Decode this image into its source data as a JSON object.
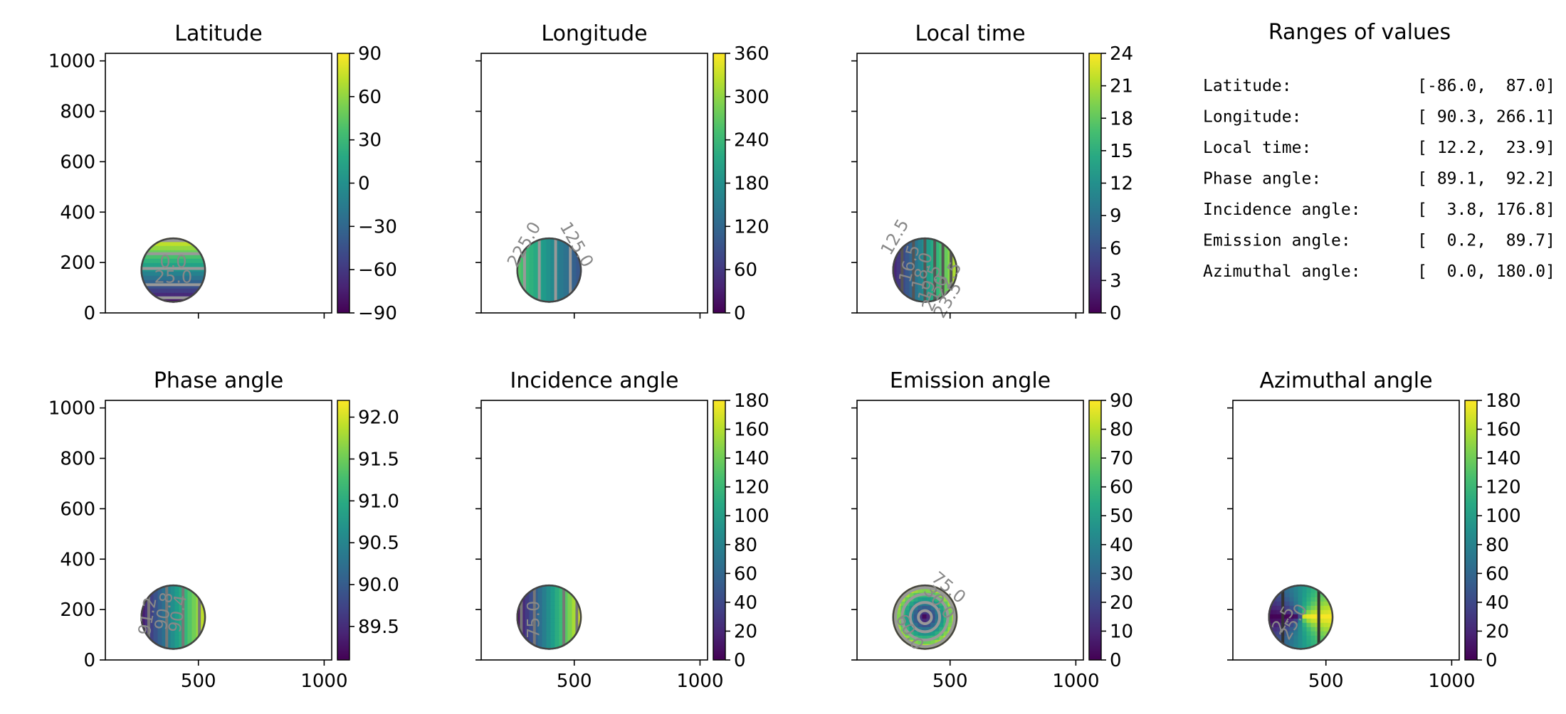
{
  "chart_data": [
    {
      "type": "heatmap",
      "title": "Latitude",
      "xlim": [
        130,
        1030
      ],
      "ylim": [
        0,
        1030
      ],
      "x_ticks": [
        500,
        1000
      ],
      "y_ticks": [
        0,
        200,
        400,
        600,
        800,
        1000
      ],
      "show_x_labels": false,
      "show_y_labels": true,
      "disk": {
        "cx": 400,
        "cy": 170,
        "r": 130
      },
      "field": "latitude",
      "colorbar": {
        "min": -90,
        "max": 90,
        "ticks": [
          "90",
          "60",
          "30",
          "0",
          "−30",
          "−60",
          "−90"
        ],
        "tick_values": [
          90,
          60,
          30,
          0,
          -30,
          -60,
          -90
        ]
      },
      "contour_labels": [
        {
          "text": "0.0",
          "x": 400,
          "y": 180,
          "rotation": 0
        },
        {
          "text": "25.0",
          "x": 400,
          "y": 120,
          "rotation": 0
        }
      ]
    },
    {
      "type": "heatmap",
      "title": "Longitude",
      "xlim": [
        130,
        1030
      ],
      "ylim": [
        0,
        1030
      ],
      "x_ticks": [
        500,
        1000
      ],
      "y_ticks": [
        0,
        200,
        400,
        600,
        800,
        1000
      ],
      "show_x_labels": false,
      "show_y_labels": false,
      "disk": {
        "cx": 400,
        "cy": 170,
        "r": 130
      },
      "field": "longitude",
      "colorbar": {
        "min": 0,
        "max": 360,
        "ticks": [
          "360",
          "300",
          "240",
          "180",
          "120",
          "60",
          "0"
        ],
        "tick_values": [
          360,
          300,
          240,
          180,
          120,
          60,
          0
        ]
      },
      "contour_labels": [
        {
          "text": "225.0",
          "x": 320,
          "y": 260,
          "rotation": -60
        },
        {
          "text": "125.0",
          "x": 490,
          "y": 260,
          "rotation": 60
        }
      ]
    },
    {
      "type": "heatmap",
      "title": "Local time",
      "xlim": [
        130,
        1030
      ],
      "ylim": [
        0,
        1030
      ],
      "x_ticks": [
        500,
        1000
      ],
      "y_ticks": [
        0,
        200,
        400,
        600,
        800,
        1000
      ],
      "show_x_labels": false,
      "show_y_labels": false,
      "disk": {
        "cx": 400,
        "cy": 170,
        "r": 130
      },
      "field": "localtime",
      "colorbar": {
        "min": 0,
        "max": 24,
        "ticks": [
          "24",
          "21",
          "18",
          "15",
          "12",
          "9",
          "6",
          "3",
          "0"
        ],
        "tick_values": [
          24,
          21,
          18,
          15,
          12,
          9,
          6,
          3,
          0
        ]
      },
      "contour_labels": [
        {
          "text": "12.5",
          "x": 300,
          "y": 290,
          "rotation": -60
        },
        {
          "text": "16.5",
          "x": 360,
          "y": 190,
          "rotation": -75
        },
        {
          "text": "18.0",
          "x": 410,
          "y": 160,
          "rotation": -75
        },
        {
          "text": "19.5",
          "x": 440,
          "y": 110,
          "rotation": -70
        },
        {
          "text": "21.0",
          "x": 460,
          "y": 70,
          "rotation": -65
        },
        {
          "text": "22.5",
          "x": 510,
          "y": 120,
          "rotation": -60
        },
        {
          "text": "23.5",
          "x": 510,
          "y": 40,
          "rotation": -60
        }
      ]
    },
    {
      "type": "table",
      "title": "Ranges of values",
      "rows": [
        {
          "label": "Latitude:",
          "range": "[-86.0,  87.0]"
        },
        {
          "label": "Longitude:",
          "range": "[ 90.3, 266.1]"
        },
        {
          "label": "Local time:",
          "range": "[ 12.2,  23.9]"
        },
        {
          "label": "Phase angle:",
          "range": "[ 89.1,  92.2]"
        },
        {
          "label": "Incidence angle:",
          "range": "[  3.8, 176.8]"
        },
        {
          "label": "Emission angle:",
          "range": "[  0.2,  89.7]"
        },
        {
          "label": "Azimuthal angle:",
          "range": "[  0.0, 180.0]"
        }
      ]
    },
    {
      "type": "heatmap",
      "title": "Phase angle",
      "xlim": [
        130,
        1030
      ],
      "ylim": [
        0,
        1030
      ],
      "x_ticks": [
        500,
        1000
      ],
      "y_ticks": [
        0,
        200,
        400,
        600,
        800,
        1000
      ],
      "show_x_labels": true,
      "show_y_labels": true,
      "disk": {
        "cx": 400,
        "cy": 170,
        "r": 130
      },
      "field": "phase",
      "colorbar": {
        "min": 89.1,
        "max": 92.2,
        "ticks": [
          "92.0",
          "91.5",
          "91.0",
          "90.5",
          "90.0",
          "89.5"
        ],
        "tick_values": [
          92.0,
          91.5,
          91.0,
          90.5,
          90.0,
          89.5
        ]
      },
      "contour_labels": [
        {
          "text": "91.2",
          "x": 320,
          "y": 170,
          "rotation": -80
        },
        {
          "text": "90.8",
          "x": 385,
          "y": 190,
          "rotation": -80
        },
        {
          "text": "90.4",
          "x": 440,
          "y": 180,
          "rotation": -80
        }
      ]
    },
    {
      "type": "heatmap",
      "title": "Incidence angle",
      "xlim": [
        130,
        1030
      ],
      "ylim": [
        0,
        1030
      ],
      "x_ticks": [
        500,
        1000
      ],
      "y_ticks": [
        0,
        200,
        400,
        600,
        800,
        1000
      ],
      "show_x_labels": true,
      "show_y_labels": false,
      "disk": {
        "cx": 400,
        "cy": 170,
        "r": 130
      },
      "field": "incidence",
      "colorbar": {
        "min": 0,
        "max": 180,
        "ticks": [
          "180",
          "160",
          "140",
          "120",
          "100",
          "80",
          "60",
          "40",
          "20",
          "0"
        ],
        "tick_values": [
          180,
          160,
          140,
          120,
          100,
          80,
          60,
          40,
          20,
          0
        ]
      },
      "contour_labels": [
        {
          "text": "75.0",
          "x": 360,
          "y": 160,
          "rotation": -90
        }
      ]
    },
    {
      "type": "heatmap",
      "title": "Emission angle",
      "xlim": [
        130,
        1030
      ],
      "ylim": [
        0,
        1030
      ],
      "x_ticks": [
        500,
        1000
      ],
      "y_ticks": [
        0,
        200,
        400,
        600,
        800,
        1000
      ],
      "show_x_labels": true,
      "show_y_labels": false,
      "disk": {
        "cx": 400,
        "cy": 170,
        "r": 130
      },
      "field": "emission",
      "colorbar": {
        "min": 0,
        "max": 90,
        "ticks": [
          "90",
          "80",
          "70",
          "60",
          "50",
          "40",
          "30",
          "20",
          "10",
          "0"
        ],
        "tick_values": [
          90,
          80,
          70,
          60,
          50,
          40,
          30,
          20,
          10,
          0
        ]
      },
      "contour_labels": [
        {
          "text": "75.0",
          "x": 480,
          "y": 270,
          "rotation": 40
        },
        {
          "text": "30.0",
          "x": 440,
          "y": 215,
          "rotation": 50
        },
        {
          "text": "60.0",
          "x": 320,
          "y": 100,
          "rotation": 60
        }
      ]
    },
    {
      "type": "heatmap",
      "title": "Azimuthal angle",
      "xlim": [
        130,
        1030
      ],
      "ylim": [
        0,
        1030
      ],
      "x_ticks": [
        500,
        1000
      ],
      "y_ticks": [
        0,
        200,
        400,
        600,
        800,
        1000
      ],
      "show_x_labels": true,
      "show_y_labels": false,
      "disk": {
        "cx": 400,
        "cy": 170,
        "r": 130
      },
      "field": "azimuth",
      "colorbar": {
        "min": 0,
        "max": 180,
        "ticks": [
          "180",
          "160",
          "140",
          "120",
          "100",
          "80",
          "60",
          "40",
          "20",
          "0"
        ],
        "tick_values": [
          180,
          160,
          140,
          120,
          100,
          80,
          60,
          40,
          20,
          0
        ]
      },
      "contour_labels": [
        {
          "text": "2.5",
          "x": 350,
          "y": 150,
          "rotation": -60
        },
        {
          "text": "25.0",
          "x": 390,
          "y": 140,
          "rotation": -60
        }
      ]
    }
  ]
}
